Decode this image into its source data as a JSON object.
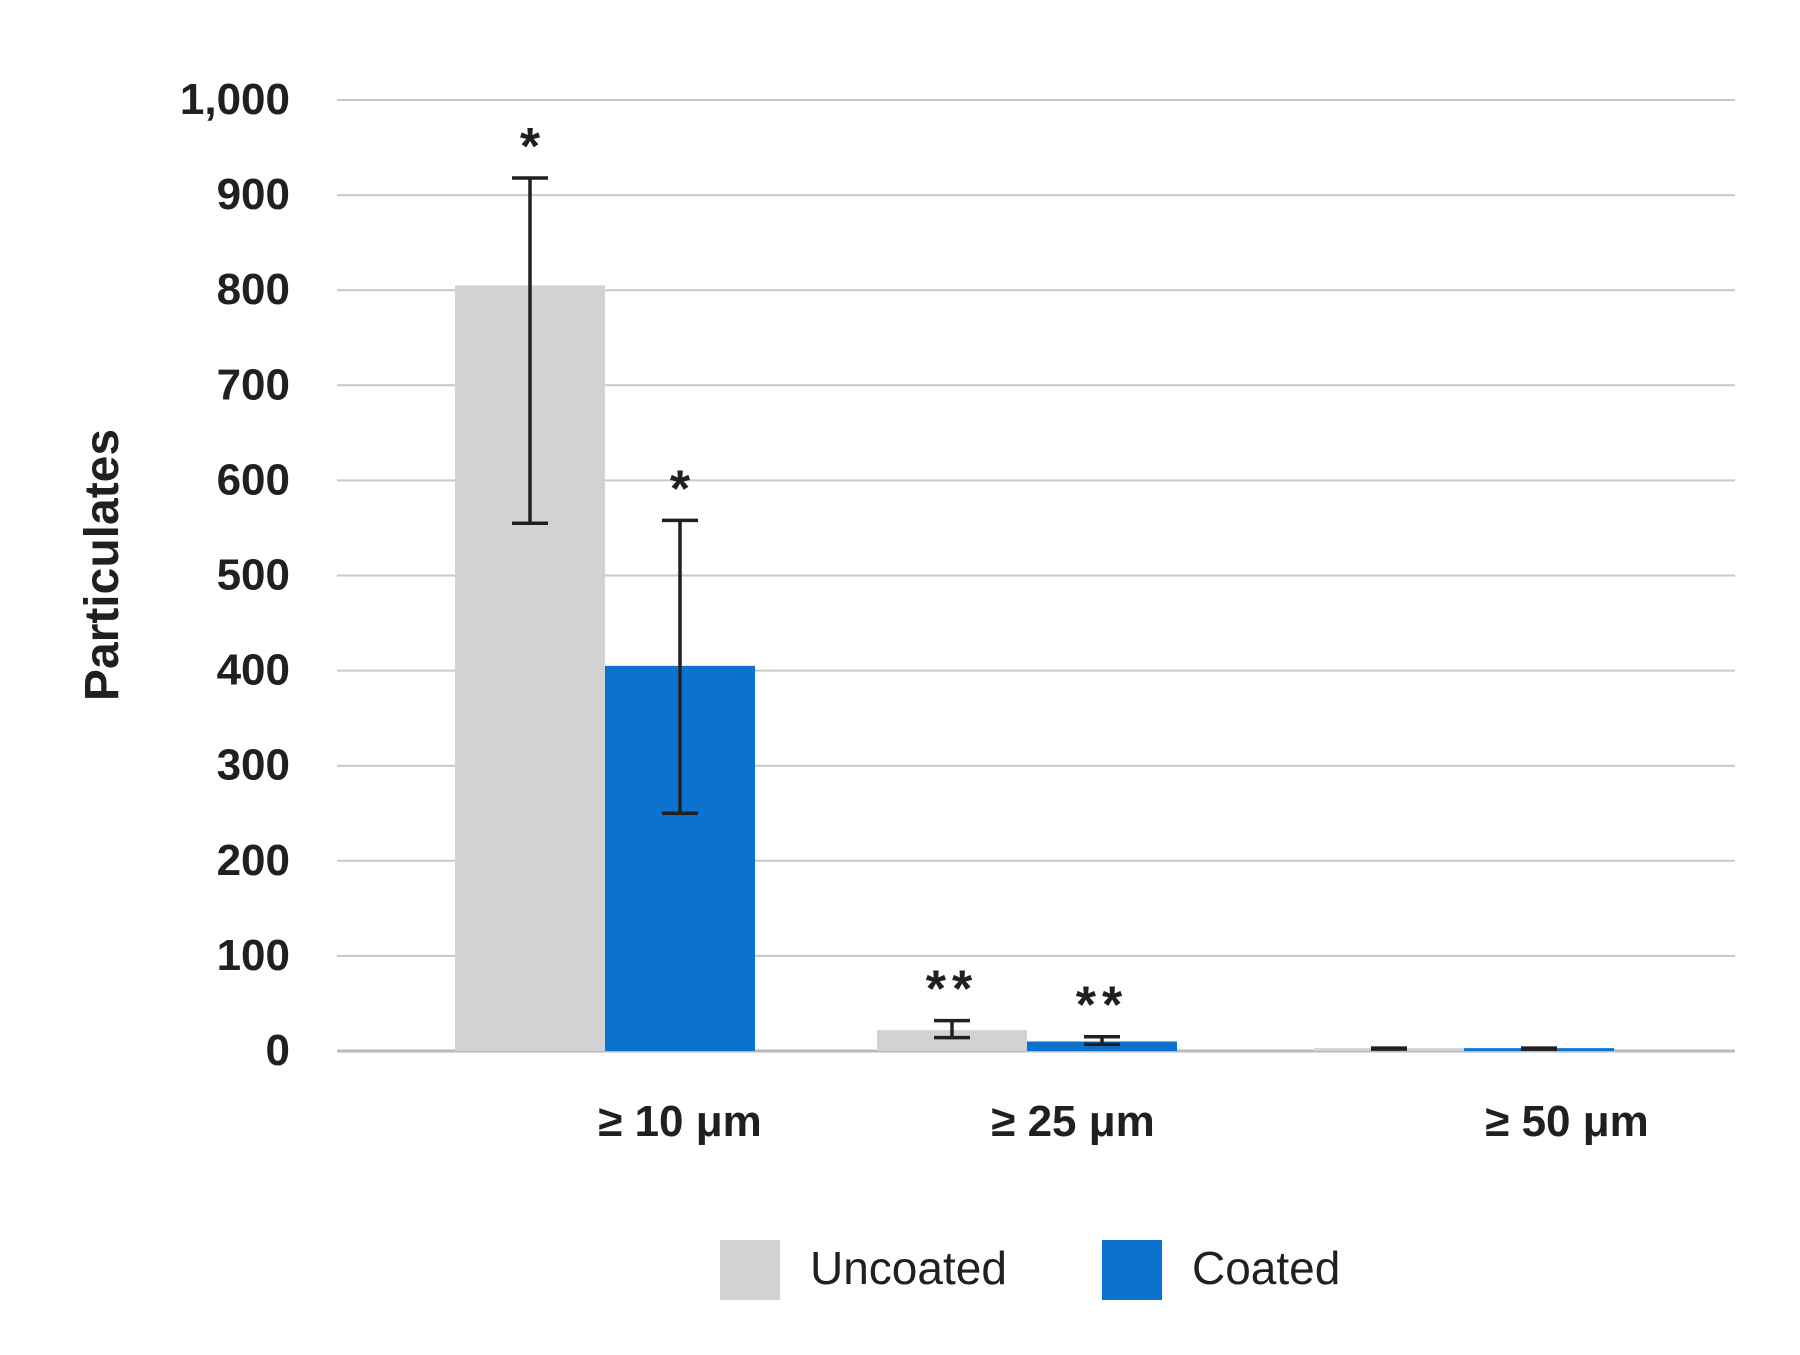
{
  "chart_data": {
    "type": "bar",
    "title": "",
    "xlabel": "",
    "ylabel": "Particulates",
    "ylim": [
      0,
      1000
    ],
    "yticks": [
      0,
      100,
      200,
      300,
      400,
      500,
      600,
      700,
      800,
      900,
      1000
    ],
    "ytick_labels": [
      "0",
      "100",
      "200",
      "300",
      "400",
      "500",
      "600",
      "700",
      "800",
      "900",
      "1,000"
    ],
    "grid": true,
    "legend_position": "bottom-center",
    "categories": [
      "≥ 10 μm",
      "≥ 25 μm",
      "≥ 50 μm"
    ],
    "series": [
      {
        "name": "Uncoated",
        "color": "#d1d2d4",
        "values": [
          805,
          22,
          3
        ],
        "error_low": [
          555,
          14,
          2
        ],
        "error_high": [
          918,
          32,
          3
        ],
        "annotations": [
          "*",
          "**",
          ""
        ]
      },
      {
        "name": "Coated",
        "color": "#0b72cf",
        "values": [
          405,
          10,
          3
        ],
        "error_low": [
          250,
          7,
          2
        ],
        "error_high": [
          558,
          15,
          3
        ],
        "annotations": [
          "*",
          "**",
          ""
        ]
      }
    ]
  }
}
